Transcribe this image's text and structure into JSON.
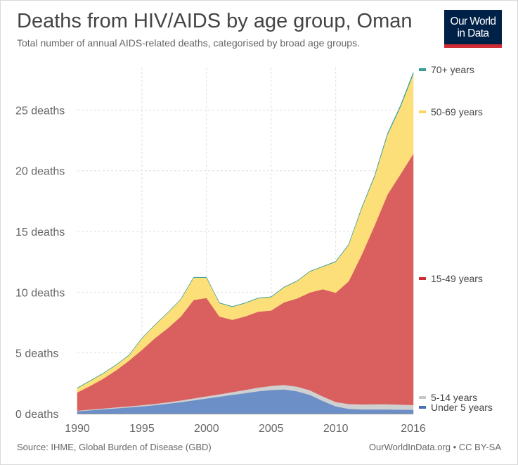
{
  "header": {
    "title": "Deaths from HIV/AIDS by age group, Oman",
    "subtitle": "Total number of annual AIDS-related deaths, categorised by broad age groups."
  },
  "logo": {
    "line1": "Our World",
    "line2": "in Data"
  },
  "footer": {
    "source": "Source: IHME, Global Burden of Disease (GBD)",
    "license": "OurWorldInData.org • CC BY-SA"
  },
  "chart_data": {
    "type": "area",
    "stacked": true,
    "x": [
      1990,
      1991,
      1992,
      1993,
      1994,
      1995,
      1996,
      1997,
      1998,
      1999,
      2000,
      2001,
      2002,
      2003,
      2004,
      2005,
      2006,
      2007,
      2008,
      2009,
      2010,
      2011,
      2012,
      2013,
      2014,
      2015,
      2016
    ],
    "series": [
      {
        "name": "Under 5 years",
        "color": "#6d8fc8",
        "legend_color": "#4a72b3",
        "values": [
          0.2,
          0.28,
          0.36,
          0.44,
          0.52,
          0.6,
          0.7,
          0.82,
          0.95,
          1.1,
          1.25,
          1.4,
          1.55,
          1.7,
          1.85,
          1.95,
          2.0,
          1.85,
          1.55,
          1.05,
          0.6,
          0.4,
          0.35,
          0.35,
          0.35,
          0.33,
          0.32
        ]
      },
      {
        "name": "5-14 years",
        "color": "#d0d0d0",
        "legend_color": "#c8c8c8",
        "values": [
          0.05,
          0.06,
          0.07,
          0.08,
          0.09,
          0.1,
          0.11,
          0.12,
          0.14,
          0.16,
          0.18,
          0.2,
          0.23,
          0.26,
          0.3,
          0.34,
          0.37,
          0.38,
          0.38,
          0.37,
          0.36,
          0.4,
          0.42,
          0.43,
          0.43,
          0.42,
          0.4
        ]
      },
      {
        "name": "15-49 years",
        "color": "#d9605f",
        "legend_color": "#cf2b34",
        "values": [
          1.5,
          1.95,
          2.45,
          3.05,
          3.75,
          4.55,
          5.4,
          6.1,
          6.9,
          8.1,
          8.1,
          6.4,
          5.95,
          6.05,
          6.25,
          6.2,
          6.8,
          7.25,
          8.05,
          8.83,
          9.0,
          10.1,
          12.3,
          14.7,
          17.25,
          18.95,
          20.68
        ]
      },
      {
        "name": "50-69 years",
        "color": "#fddf79",
        "legend_color": "#fbd65b",
        "values": [
          0.35,
          0.41,
          0.42,
          0.43,
          0.44,
          0.95,
          1.09,
          1.26,
          1.41,
          1.84,
          1.67,
          1.1,
          1.07,
          1.09,
          1.1,
          1.11,
          1.23,
          1.42,
          1.72,
          1.85,
          2.54,
          3.0,
          3.83,
          4.02,
          4.92,
          5.54,
          6.55
        ]
      },
      {
        "name": "70+ years",
        "color": "#3a9d96",
        "legend_color": "#3a9d96",
        "values": [
          0.03,
          0.03,
          0.03,
          0.03,
          0.03,
          0.03,
          0.03,
          0.03,
          0.03,
          0.03,
          0.03,
          0.03,
          0.03,
          0.03,
          0.03,
          0.03,
          0.03,
          0.03,
          0.03,
          0.03,
          0.04,
          0.05,
          0.06,
          0.08,
          0.1,
          0.12,
          0.15
        ]
      }
    ],
    "y_ticks": [
      0,
      5,
      10,
      15,
      20,
      25
    ],
    "y_tick_labels": [
      "0 deaths",
      "5 deaths",
      "10 deaths",
      "15 deaths",
      "20 deaths",
      "25 deaths"
    ],
    "x_ticks": [
      1990,
      1995,
      2000,
      2005,
      2010,
      2016
    ],
    "x_tick_labels": [
      "1990",
      "1995",
      "2000",
      "2005",
      "2010",
      "2016"
    ],
    "xlim": [
      1990,
      2016
    ],
    "ylim": [
      0,
      28.5
    ],
    "grid": "dashed",
    "legend_placement": "right"
  }
}
